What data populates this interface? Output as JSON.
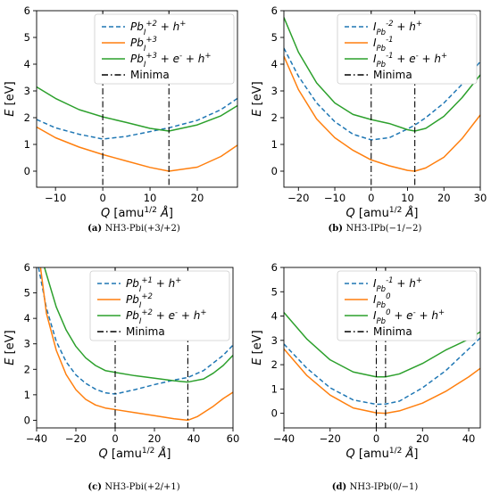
{
  "colors": {
    "blue": "#1f77b4",
    "orange": "#ff7f0e",
    "green": "#2ca02c",
    "black": "#000000"
  },
  "chart_data": [
    {
      "id": "a",
      "type": "line",
      "caption_letter": "(a)",
      "caption_text": "NH3-Pbi(+3/+2)",
      "xlabel": "Q [amu1/2 Å]",
      "ylabel": "E [eV]",
      "xlim": [
        -14,
        28.5
      ],
      "ylim": [
        -0.6,
        6
      ],
      "xticks": [
        -10,
        0,
        10,
        20
      ],
      "yticks": [
        0,
        1,
        2,
        3,
        4,
        5,
        6
      ],
      "legend_position": "top-right",
      "series": [
        {
          "name": "Pb_I^{+2} + h^{+}",
          "style": "dashed",
          "color": "blue",
          "points": [
            [
              -14,
              1.93
            ],
            [
              -10,
              1.62
            ],
            [
              -5,
              1.38
            ],
            [
              0,
              1.2
            ],
            [
              5,
              1.3
            ],
            [
              10,
              1.48
            ],
            [
              14,
              1.62
            ],
            [
              20,
              1.9
            ],
            [
              25,
              2.3
            ],
            [
              28.5,
              2.72
            ]
          ]
        },
        {
          "name": "Pb_I^{+3}",
          "style": "solid",
          "color": "orange",
          "points": [
            [
              -14,
              1.65
            ],
            [
              -10,
              1.25
            ],
            [
              -5,
              0.9
            ],
            [
              0,
              0.62
            ],
            [
              5,
              0.38
            ],
            [
              10,
              0.14
            ],
            [
              14,
              0.0
            ],
            [
              20,
              0.15
            ],
            [
              25,
              0.55
            ],
            [
              28.5,
              0.97
            ]
          ]
        },
        {
          "name": "Pb_I^{+3} + e^{-} + h^{+}",
          "style": "solid",
          "color": "green",
          "points": [
            [
              -14,
              3.15
            ],
            [
              -10,
              2.72
            ],
            [
              -5,
              2.3
            ],
            [
              0,
              2.03
            ],
            [
              5,
              1.82
            ],
            [
              10,
              1.6
            ],
            [
              14,
              1.5
            ],
            [
              20,
              1.73
            ],
            [
              25,
              2.07
            ],
            [
              28.5,
              2.45
            ]
          ]
        },
        {
          "name": "Minima",
          "style": "dashdot",
          "color": "black",
          "vlines": [
            0,
            14
          ]
        }
      ]
    },
    {
      "id": "b",
      "type": "line",
      "caption_letter": "(b)",
      "caption_text": "NH3-IPb(−1/−2)",
      "xlabel": "Q [amu1/2 Å]",
      "ylabel": "E [eV]",
      "xlim": [
        -24,
        30
      ],
      "ylim": [
        -0.6,
        6
      ],
      "xticks": [
        -20,
        -10,
        0,
        10,
        20,
        30
      ],
      "yticks": [
        0,
        1,
        2,
        3,
        4,
        5,
        6
      ],
      "legend_position": "top-right",
      "series": [
        {
          "name": "I_{Pb}^{-2} + h^{+}",
          "style": "dashed",
          "color": "blue",
          "points": [
            [
              -24,
              4.6
            ],
            [
              -20,
              3.55
            ],
            [
              -15,
              2.55
            ],
            [
              -10,
              1.85
            ],
            [
              -5,
              1.38
            ],
            [
              0,
              1.17
            ],
            [
              5,
              1.25
            ],
            [
              10,
              1.58
            ],
            [
              12,
              1.72
            ],
            [
              15,
              2.0
            ],
            [
              20,
              2.55
            ],
            [
              25,
              3.25
            ],
            [
              30,
              4.1
            ]
          ]
        },
        {
          "name": "I_{Pb}^{-1}",
          "style": "solid",
          "color": "orange",
          "points": [
            [
              -24,
              4.3
            ],
            [
              -20,
              3.05
            ],
            [
              -15,
              1.95
            ],
            [
              -10,
              1.25
            ],
            [
              -5,
              0.78
            ],
            [
              0,
              0.42
            ],
            [
              5,
              0.2
            ],
            [
              10,
              0.03
            ],
            [
              12,
              0.0
            ],
            [
              15,
              0.12
            ],
            [
              20,
              0.52
            ],
            [
              25,
              1.22
            ],
            [
              30,
              2.1
            ]
          ]
        },
        {
          "name": "I_{Pb}^{-1} + e^{-} + h^{+}",
          "style": "solid",
          "color": "green",
          "points": [
            [
              -24,
              5.75
            ],
            [
              -20,
              4.45
            ],
            [
              -15,
              3.3
            ],
            [
              -10,
              2.55
            ],
            [
              -5,
              2.12
            ],
            [
              0,
              1.93
            ],
            [
              5,
              1.78
            ],
            [
              10,
              1.55
            ],
            [
              12,
              1.5
            ],
            [
              15,
              1.6
            ],
            [
              20,
              2.05
            ],
            [
              25,
              2.75
            ],
            [
              30,
              3.6
            ]
          ]
        },
        {
          "name": "Minima",
          "style": "dashdot",
          "color": "black",
          "vlines": [
            0,
            12
          ]
        }
      ]
    },
    {
      "id": "c",
      "type": "line",
      "caption_letter": "(c)",
      "caption_text": "NH3-Pbi(+2/+1)",
      "xlabel": "Q [amu1/2 Å]",
      "ylabel": "E [eV]",
      "xlim": [
        -40,
        60
      ],
      "ylim": [
        -0.3,
        6
      ],
      "xticks": [
        -40,
        -20,
        0,
        20,
        40,
        60
      ],
      "yticks": [
        0,
        1,
        2,
        3,
        4,
        5,
        6
      ],
      "legend_position": "top-right",
      "series": [
        {
          "name": "Pb_I^{+1} + h^{+}",
          "style": "dashed",
          "color": "blue",
          "points": [
            [
              -39,
              6.0
            ],
            [
              -35,
              4.4
            ],
            [
              -30,
              3.1
            ],
            [
              -25,
              2.3
            ],
            [
              -20,
              1.78
            ],
            [
              -15,
              1.45
            ],
            [
              -10,
              1.22
            ],
            [
              -5,
              1.08
            ],
            [
              0,
              1.03
            ],
            [
              10,
              1.2
            ],
            [
              20,
              1.4
            ],
            [
              30,
              1.58
            ],
            [
              37,
              1.68
            ],
            [
              45,
              1.95
            ],
            [
              50,
              2.25
            ],
            [
              55,
              2.55
            ],
            [
              60,
              2.95
            ]
          ]
        },
        {
          "name": "Pb_I^{+2}",
          "style": "solid",
          "color": "orange",
          "points": [
            [
              -38,
              6.0
            ],
            [
              -35,
              4.2
            ],
            [
              -30,
              2.75
            ],
            [
              -25,
              1.8
            ],
            [
              -20,
              1.2
            ],
            [
              -15,
              0.82
            ],
            [
              -10,
              0.6
            ],
            [
              -5,
              0.48
            ],
            [
              0,
              0.42
            ],
            [
              10,
              0.3
            ],
            [
              20,
              0.18
            ],
            [
              30,
              0.06
            ],
            [
              37,
              0.0
            ],
            [
              42,
              0.15
            ],
            [
              50,
              0.55
            ],
            [
              55,
              0.85
            ],
            [
              60,
              1.1
            ]
          ]
        },
        {
          "name": "Pb_I^{+2} + e^{-} + h^{+}",
          "style": "solid",
          "color": "green",
          "points": [
            [
              -36,
              6.0
            ],
            [
              -30,
              4.45
            ],
            [
              -25,
              3.55
            ],
            [
              -20,
              2.9
            ],
            [
              -15,
              2.45
            ],
            [
              -10,
              2.15
            ],
            [
              -5,
              1.95
            ],
            [
              0,
              1.88
            ],
            [
              10,
              1.75
            ],
            [
              20,
              1.65
            ],
            [
              30,
              1.55
            ],
            [
              37,
              1.5
            ],
            [
              45,
              1.62
            ],
            [
              50,
              1.85
            ],
            [
              55,
              2.15
            ],
            [
              60,
              2.55
            ]
          ]
        },
        {
          "name": "Minima",
          "style": "dashdot",
          "color": "black",
          "vlines": [
            0,
            37
          ]
        }
      ]
    },
    {
      "id": "d",
      "type": "line",
      "caption_letter": "(d)",
      "caption_text": "NH3-IPb(0/−1)",
      "xlabel": "Q [amu1/2 Å]",
      "ylabel": "E [eV]",
      "xlim": [
        -40,
        45
      ],
      "ylim": [
        -0.6,
        6
      ],
      "xticks": [
        -40,
        -20,
        0,
        20,
        40
      ],
      "yticks": [
        0,
        1,
        2,
        3,
        4,
        5,
        6
      ],
      "legend_position": "top-right",
      "series": [
        {
          "name": "I_{Pb}^{-1} + h^{+}",
          "style": "dashed",
          "color": "blue",
          "points": [
            [
              -40,
              2.85
            ],
            [
              -30,
              1.85
            ],
            [
              -20,
              1.05
            ],
            [
              -10,
              0.55
            ],
            [
              0,
              0.37
            ],
            [
              4,
              0.38
            ],
            [
              10,
              0.5
            ],
            [
              20,
              1.05
            ],
            [
              30,
              1.75
            ],
            [
              40,
              2.65
            ],
            [
              45,
              3.1
            ]
          ]
        },
        {
          "name": "I_{Pb}^{0}",
          "style": "solid",
          "color": "orange",
          "points": [
            [
              -40,
              2.65
            ],
            [
              -30,
              1.55
            ],
            [
              -20,
              0.75
            ],
            [
              -10,
              0.22
            ],
            [
              0,
              0.02
            ],
            [
              4,
              0.0
            ],
            [
              10,
              0.1
            ],
            [
              20,
              0.42
            ],
            [
              30,
              0.9
            ],
            [
              40,
              1.5
            ],
            [
              45,
              1.85
            ]
          ]
        },
        {
          "name": "I_{Pb}^{0} + e^{-} + h^{+}",
          "style": "solid",
          "color": "green",
          "points": [
            [
              -40,
              4.15
            ],
            [
              -30,
              3.05
            ],
            [
              -20,
              2.2
            ],
            [
              -10,
              1.7
            ],
            [
              0,
              1.5
            ],
            [
              4,
              1.5
            ],
            [
              10,
              1.62
            ],
            [
              20,
              2.05
            ],
            [
              30,
              2.6
            ],
            [
              40,
              3.05
            ],
            [
              45,
              3.35
            ]
          ]
        },
        {
          "name": "Minima",
          "style": "dashdot",
          "color": "black",
          "vlines": [
            0,
            4
          ]
        }
      ]
    }
  ]
}
